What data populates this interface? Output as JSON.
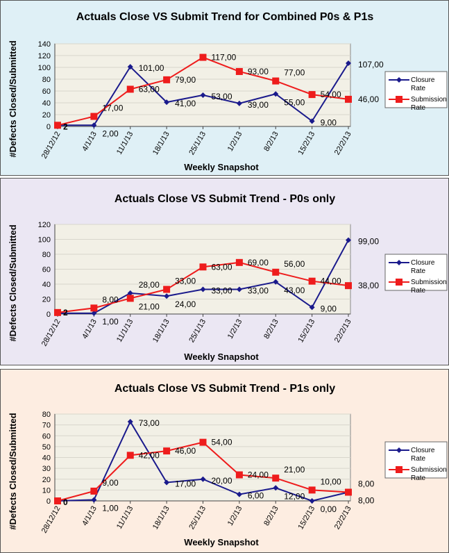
{
  "colors": {
    "closure": "#1a1a8c",
    "submission": "#ee1c1c",
    "plot_bg": "#f2f0e6",
    "legend_bg": "#ffffff"
  },
  "chart_data": [
    {
      "type": "line",
      "title": "Actuals Close VS Submit Trend for Combined P0s & P1s",
      "xlabel": "Weekly Snapshot",
      "ylabel": "#Defects Closed/Submitted",
      "categories": [
        "28/12/12",
        "4/1/13",
        "11/1/13",
        "18/1/13",
        "25/1/13",
        "1/2/13",
        "8/2/13",
        "15/2/13",
        "22/2/13"
      ],
      "ylim": [
        0,
        140
      ],
      "yticks": [
        0,
        20,
        40,
        60,
        80,
        100,
        120,
        140
      ],
      "grid": true,
      "legend": "right",
      "panel_bg": "#dff0f6",
      "series": [
        {
          "name": "Closure Rate",
          "legend_lines": [
            "Closure",
            "Rate"
          ],
          "values": [
            2,
            2,
            101,
            41,
            53,
            39,
            55,
            9,
            107
          ],
          "labels": [
            "2",
            "2,00",
            "101,00",
            "41,00",
            "53,00",
            "39,00",
            "55,00",
            "9,00",
            "107,00"
          ]
        },
        {
          "name": "Submission Rate",
          "legend_lines": [
            "Submission",
            "Rate"
          ],
          "values": [
            2,
            17,
            63,
            79,
            117,
            93,
            77,
            54,
            46
          ],
          "labels": [
            "",
            "17,00",
            "63,00",
            "79,00",
            "117,00",
            "93,00",
            "77,00",
            "54,00",
            "46,00"
          ]
        }
      ]
    },
    {
      "type": "line",
      "title": "Actuals Close VS Submit Trend - P0s only",
      "xlabel": "Weekly Snapshot",
      "ylabel": "#Defects Closed/Submitted",
      "categories": [
        "28/12/12",
        "4/1/13",
        "11/1/13",
        "18/1/13",
        "25/1/13",
        "1/2/13",
        "8/2/13",
        "15/2/13",
        "22/2/13"
      ],
      "ylim": [
        0,
        120
      ],
      "yticks": [
        0,
        20,
        40,
        60,
        80,
        100,
        120
      ],
      "grid": true,
      "legend": "right",
      "panel_bg": "#ebe7f3",
      "series": [
        {
          "name": "Closure Rate",
          "legend_lines": [
            "Closure",
            "Rate"
          ],
          "values": [
            1,
            1,
            28,
            24,
            33,
            33,
            43,
            9,
            99
          ],
          "labels": [
            "",
            "1,00",
            "28,00",
            "24,00",
            "33,00",
            "33,00",
            "43,00",
            "9,00",
            "99,00"
          ]
        },
        {
          "name": "Submission Rate",
          "legend_lines": [
            "Submission",
            "Rate"
          ],
          "values": [
            2,
            8,
            21,
            33,
            63,
            69,
            56,
            44,
            38
          ],
          "labels": [
            "2",
            "8,00",
            "21,00",
            "33,00",
            "63,00",
            "69,00",
            "56,00",
            "44,00",
            "38,00"
          ]
        }
      ]
    },
    {
      "type": "line",
      "title": "Actuals Close VS Submit Trend - P1s only",
      "xlabel": "Weekly Snapshot",
      "ylabel": "#Defects Closed/Submitted",
      "categories": [
        "28/12/12",
        "4/1/13",
        "11/1/13",
        "18/1/13",
        "25/1/13",
        "1/2/13",
        "8/2/13",
        "15/2/13",
        "22/2/13"
      ],
      "ylim": [
        0,
        80
      ],
      "yticks": [
        0,
        10,
        20,
        30,
        40,
        50,
        60,
        70,
        80
      ],
      "grid": true,
      "legend": "right",
      "panel_bg": "#fdede1",
      "series": [
        {
          "name": "Closure Rate",
          "legend_lines": [
            "Closure",
            "Rate"
          ],
          "values": [
            0,
            1,
            73,
            17,
            20,
            6,
            12,
            0,
            8
          ],
          "labels": [
            "0",
            "1,00",
            "73,00",
            "17,00",
            "20,00",
            "6,00",
            "12,00",
            "0,00",
            "8,00"
          ]
        },
        {
          "name": "Submission Rate",
          "legend_lines": [
            "Submission",
            "Rate"
          ],
          "values": [
            0,
            9,
            42,
            46,
            54,
            24,
            21,
            10,
            8
          ],
          "labels": [
            "",
            "9,00",
            "42,00",
            "46,00",
            "54,00",
            "24,00",
            "21,00",
            "10,00",
            "8,00"
          ]
        }
      ]
    }
  ]
}
